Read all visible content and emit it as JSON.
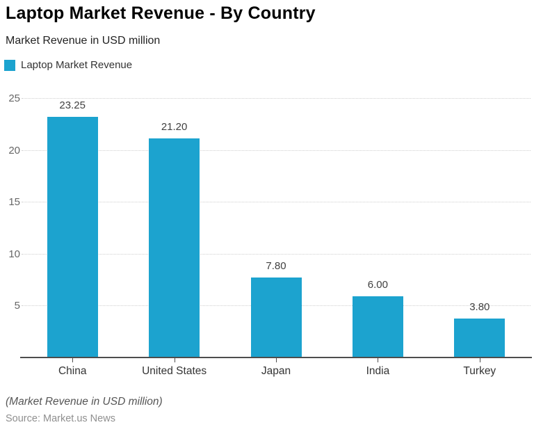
{
  "header": {
    "title": "Laptop Market Revenue - By Country",
    "subtitle": "Market Revenue in USD million"
  },
  "legend": {
    "label": "Laptop Market Revenue",
    "swatch_color": "#1CA3CF"
  },
  "chart_data": {
    "type": "bar",
    "title": "Laptop Market Revenue - By Country",
    "subtitle": "Market Revenue in USD million",
    "series_name": "Laptop Market Revenue",
    "categories": [
      "China",
      "United States",
      "Japan",
      "India",
      "Turkey"
    ],
    "values": [
      23.25,
      21.2,
      7.8,
      6.0,
      3.8
    ],
    "value_labels": [
      "23.25",
      "21.20",
      "7.80",
      "6.00",
      "3.80"
    ],
    "xlabel": "",
    "ylabel": "Market Revenue in USD million",
    "ylim": [
      0,
      25
    ],
    "yticks": [
      5,
      10,
      15,
      20,
      25
    ],
    "grid": "horizontal-dotted",
    "legend_position": "top-left",
    "bar_color": "#1CA3CF",
    "axis_color": "#4d4d4d",
    "gridline_color": "#cfcfcf"
  },
  "footer": {
    "note": "(Market Revenue in USD million)",
    "source": "Source: Market.us News"
  }
}
